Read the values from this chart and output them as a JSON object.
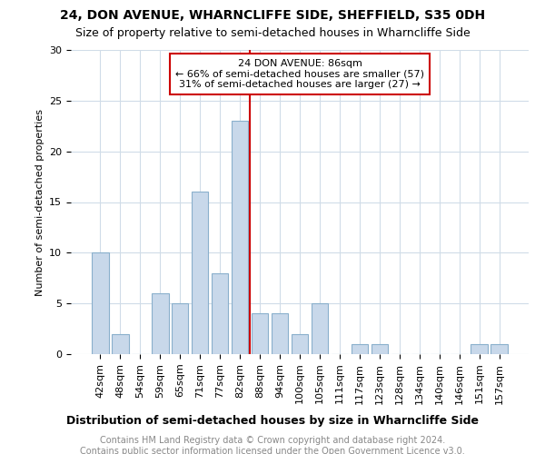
{
  "title": "24, DON AVENUE, WHARNCLIFFE SIDE, SHEFFIELD, S35 0DH",
  "subtitle": "Size of property relative to semi-detached houses in Wharncliffe Side",
  "xlabel": "Distribution of semi-detached houses by size in Wharncliffe Side",
  "ylabel": "Number of semi-detached properties",
  "footnote1": "Contains HM Land Registry data © Crown copyright and database right 2024.",
  "footnote2": "Contains public sector information licensed under the Open Government Licence v3.0.",
  "annotation_title": "24 DON AVENUE: 86sqm",
  "annotation_line1": "← 66% of semi-detached houses are smaller (57)",
  "annotation_line2": "31% of semi-detached houses are larger (27) →",
  "bar_color": "#c8d8ea",
  "bar_edge_color": "#8ab0cc",
  "vline_color": "#cc0000",
  "annotation_box_edge_color": "#cc0000",
  "categories": [
    "42sqm",
    "48sqm",
    "54sqm",
    "59sqm",
    "65sqm",
    "71sqm",
    "77sqm",
    "82sqm",
    "88sqm",
    "94sqm",
    "100sqm",
    "105sqm",
    "111sqm",
    "117sqm",
    "123sqm",
    "128sqm",
    "134sqm",
    "140sqm",
    "146sqm",
    "151sqm",
    "157sqm"
  ],
  "values": [
    10,
    2,
    0,
    6,
    5,
    16,
    8,
    23,
    4,
    4,
    2,
    5,
    0,
    1,
    1,
    0,
    0,
    0,
    0,
    1,
    1
  ],
  "ylim": [
    0,
    30
  ],
  "yticks": [
    0,
    5,
    10,
    15,
    20,
    25,
    30
  ],
  "vline_x": 7.5,
  "background_color": "#ffffff",
  "grid_color": "#d0dce8",
  "title_fontsize": 10,
  "subtitle_fontsize": 9,
  "ylabel_fontsize": 8,
  "xlabel_fontsize": 9,
  "tick_fontsize": 8,
  "footnote_fontsize": 7,
  "annotation_fontsize": 8
}
